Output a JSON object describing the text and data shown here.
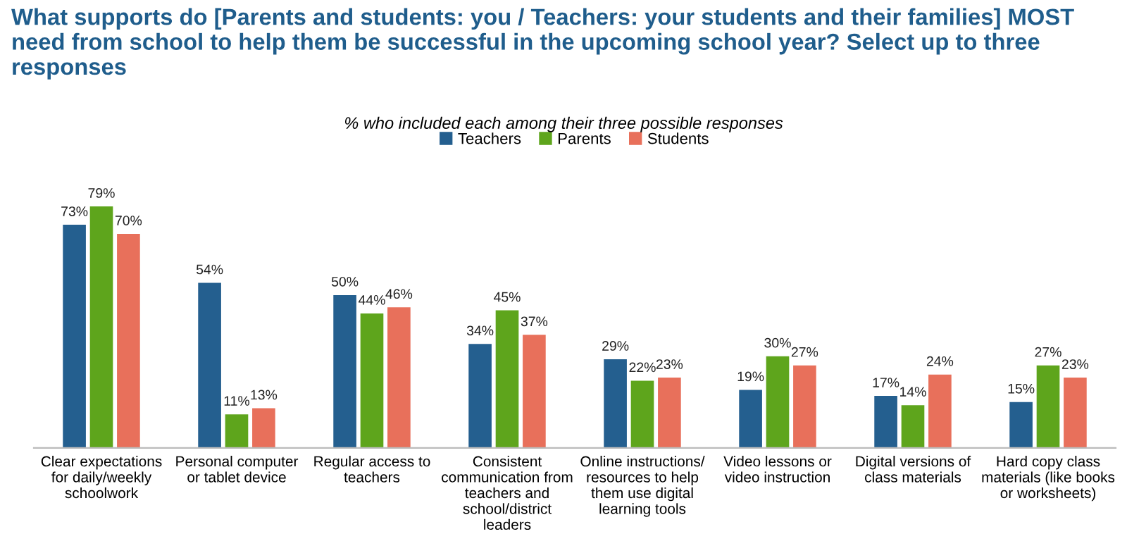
{
  "chart_data": {
    "type": "bar",
    "title": "What supports do [Parents and students: you / Teachers: your students and their families] MOST need from school to help them be successful in the upcoming school year? Select up to three responses",
    "subtitle": "% who included each among their three possible responses",
    "categories": [
      "Clear expectations\nfor daily/weekly\nschoolwork",
      "Personal computer\nor tablet device",
      "Regular access to\nteachers",
      "Consistent\ncommunication from\nteachers and\nschool/district\nleaders",
      "Online instructions/\nresources to help\nthem use digital\nlearning tools",
      "Video lessons or\nvideo instruction",
      "Digital versions of\nclass materials",
      "Hard copy class\nmaterials (like books\nor worksheets)"
    ],
    "series": [
      {
        "name": "Teachers",
        "color": "#245f8f",
        "values": [
          73,
          54,
          50,
          34,
          29,
          19,
          17,
          15
        ],
        "value_labels": [
          "73%",
          "54%",
          "50%",
          "34%",
          "29%",
          "19%",
          "17%",
          "15%"
        ]
      },
      {
        "name": "Parents",
        "color": "#5ea51c",
        "values": [
          79,
          11,
          44,
          45,
          22,
          30,
          14,
          27
        ],
        "value_labels": [
          "79%",
          "11%",
          "44%",
          "45%",
          "22%",
          "30%",
          "14%",
          "27%"
        ]
      },
      {
        "name": "Students",
        "color": "#e8705b",
        "values": [
          70,
          13,
          46,
          37,
          23,
          27,
          24,
          23
        ],
        "value_labels": [
          "70%",
          "13%",
          "46%",
          "37%",
          "23%",
          "27%",
          "24%",
          "23%"
        ]
      }
    ],
    "legend": "top",
    "grid": false
  }
}
